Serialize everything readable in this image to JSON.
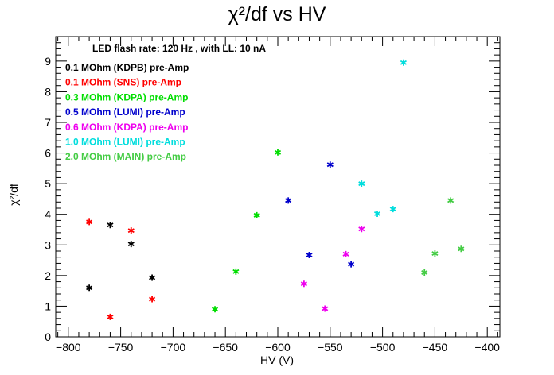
{
  "chart_data": {
    "type": "scatter",
    "title": "χ²/df vs HV",
    "xlabel": "HV (V)",
    "ylabel": "χ²/df",
    "xlim": [
      -812,
      -388
    ],
    "ylim": [
      0,
      9.8
    ],
    "x_ticks": [
      -800,
      -750,
      -700,
      -650,
      -600,
      -550,
      -500,
      -450,
      -400
    ],
    "y_ticks": [
      0,
      1,
      2,
      3,
      4,
      5,
      6,
      7,
      8,
      9
    ],
    "annotation": "LED flash rate: 120 Hz , with LL: 10 nA",
    "legend_placement": "top-left",
    "series": [
      {
        "name": "0.1 MOhm (KDPB) pre-Amp",
        "color": "#000000",
        "points": [
          [
            -780,
            1.6
          ],
          [
            -760,
            3.65
          ],
          [
            -740,
            3.03
          ],
          [
            -720,
            1.93
          ]
        ]
      },
      {
        "name": "0.1 MOhm (SNS) pre-Amp",
        "color": "#ff0000",
        "points": [
          [
            -780,
            3.75
          ],
          [
            -760,
            0.65
          ],
          [
            -740,
            3.47
          ],
          [
            -720,
            1.23
          ]
        ]
      },
      {
        "name": "0.3 MOhm (KDPA) pre-Amp",
        "color": "#00dd00",
        "points": [
          [
            -660,
            0.9
          ],
          [
            -640,
            2.13
          ],
          [
            -620,
            3.97
          ],
          [
            -600,
            6.02
          ]
        ]
      },
      {
        "name": "0.5 MOhm (LUMI) pre-Amp",
        "color": "#0000cc",
        "points": [
          [
            -590,
            4.45
          ],
          [
            -570,
            2.67
          ],
          [
            -550,
            5.62
          ],
          [
            -530,
            2.37
          ]
        ]
      },
      {
        "name": "0.6 MOhm (KDPA) pre-Amp",
        "color": "#ee00ee",
        "points": [
          [
            -575,
            1.73
          ],
          [
            -555,
            0.92
          ],
          [
            -535,
            2.7
          ],
          [
            -520,
            3.52
          ]
        ]
      },
      {
        "name": "1.0 MOhm (LUMI) pre-Amp",
        "color": "#00dddd",
        "points": [
          [
            -520,
            5.0
          ],
          [
            -505,
            4.02
          ],
          [
            -490,
            4.17
          ],
          [
            -480,
            8.95
          ]
        ]
      },
      {
        "name": "2.0 MOhm (MAIN) pre-Amp",
        "color": "#44cc44",
        "points": [
          [
            -460,
            2.1
          ],
          [
            -450,
            2.72
          ],
          [
            -435,
            4.45
          ],
          [
            -425,
            2.87
          ]
        ]
      }
    ]
  }
}
